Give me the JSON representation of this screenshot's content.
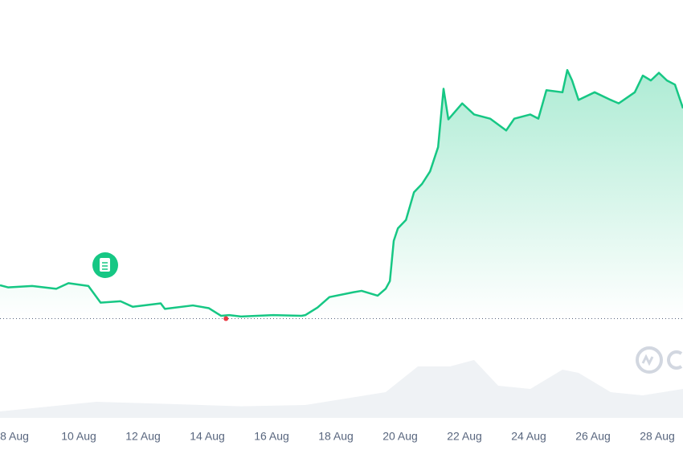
{
  "chart_data": {
    "type": "line",
    "color": "#16c784",
    "xlim": [
      7.55,
      28.8
    ],
    "xticks": [
      {
        "value": 8,
        "label": "8 Aug"
      },
      {
        "value": 10,
        "label": "10 Aug"
      },
      {
        "value": 12,
        "label": "12 Aug"
      },
      {
        "value": 14,
        "label": "14 Aug"
      },
      {
        "value": 16,
        "label": "16 Aug"
      },
      {
        "value": 18,
        "label": "18 Aug"
      },
      {
        "value": 20,
        "label": "20 Aug"
      },
      {
        "value": 22,
        "label": "22 Aug"
      },
      {
        "value": 24,
        "label": "24 Aug"
      },
      {
        "value": 26,
        "label": "26 Aug"
      },
      {
        "value": 28,
        "label": "28 Aug"
      }
    ],
    "ylim": [
      0,
      5
    ],
    "grid_lines": [
      0,
      1,
      2,
      3,
      4,
      5
    ],
    "open_line": 0.55,
    "low_marker": {
      "x": 14.58,
      "value": 0.55,
      "color": "#ea3943"
    },
    "x": [
      7.55,
      7.8,
      8.55,
      9.3,
      9.68,
      10.3,
      10.68,
      11.3,
      11.68,
      12.55,
      12.68,
      13.55,
      14.05,
      14.43,
      14.68,
      15.05,
      16.05,
      16.93,
      17.05,
      17.43,
      17.8,
      18.55,
      18.8,
      19.3,
      19.55,
      19.68,
      19.8,
      19.93,
      20.18,
      20.43,
      20.68,
      20.93,
      21.18,
      21.35,
      21.5,
      21.93,
      22.3,
      22.8,
      23.3,
      23.55,
      24.05,
      24.3,
      24.55,
      25.05,
      25.2,
      25.35,
      25.55,
      26.05,
      26.55,
      26.8,
      27.3,
      27.55,
      27.8,
      28.05,
      28.3,
      28.55,
      28.8
    ],
    "values": [
      1.03,
      1.0,
      1.02,
      0.98,
      1.06,
      1.02,
      0.78,
      0.8,
      0.72,
      0.77,
      0.69,
      0.74,
      0.7,
      0.59,
      0.6,
      0.58,
      0.6,
      0.59,
      0.6,
      0.71,
      0.86,
      0.93,
      0.95,
      0.88,
      0.98,
      1.09,
      1.67,
      1.85,
      1.97,
      2.37,
      2.49,
      2.67,
      3.02,
      3.86,
      3.42,
      3.65,
      3.49,
      3.43,
      3.26,
      3.43,
      3.49,
      3.43,
      3.84,
      3.81,
      4.13,
      3.98,
      3.7,
      3.81,
      3.7,
      3.65,
      3.81,
      4.05,
      3.98,
      4.09,
      3.98,
      3.92,
      3.58
    ],
    "volume": {
      "color": "#eff2f5",
      "ylim": [
        0,
        1
      ],
      "x": [
        7.55,
        10.55,
        12.55,
        15.05,
        17.05,
        19.55,
        20.55,
        21.55,
        22.3,
        23.05,
        24.05,
        25.05,
        25.55,
        26.55,
        27.55,
        28.8
      ],
      "values": [
        0.1,
        0.25,
        0.22,
        0.18,
        0.2,
        0.4,
        0.8,
        0.8,
        0.9,
        0.5,
        0.45,
        0.75,
        0.7,
        0.4,
        0.35,
        0.45
      ]
    }
  }
}
